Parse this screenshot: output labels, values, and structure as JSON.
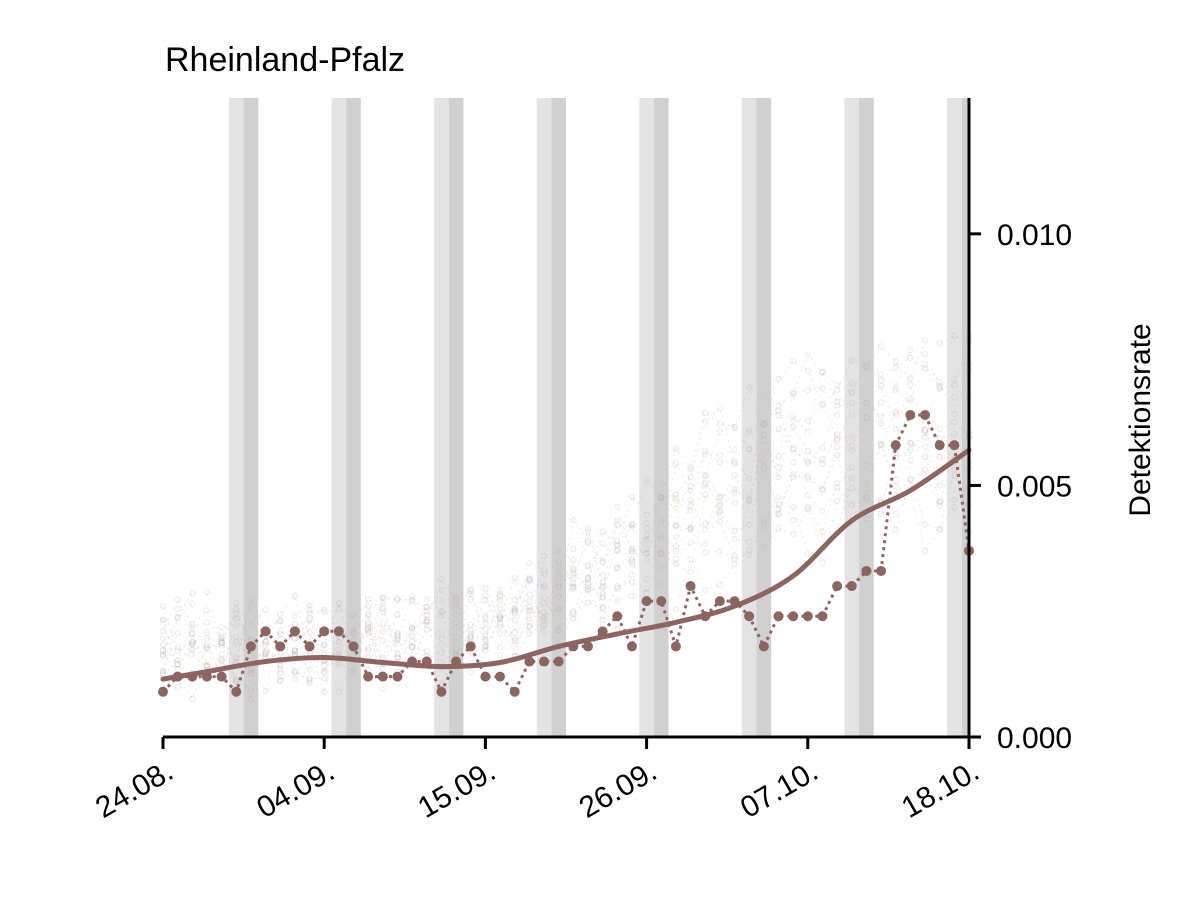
{
  "chart_data": {
    "type": "line",
    "title": "Rheinland-Pfalz",
    "ylabel": "Detektionsrate",
    "y_axis_side": "right",
    "ylim": [
      0,
      0.0127
    ],
    "yticks": [
      0.0,
      0.005,
      0.01
    ],
    "ytick_labels": [
      "0.000",
      "0.005",
      "0.010"
    ],
    "xlim": [
      "2020-08-24",
      "2020-10-18"
    ],
    "xticks": [
      "2020-08-24",
      "2020-09-04",
      "2020-09-15",
      "2020-09-26",
      "2020-10-07",
      "2020-10-18"
    ],
    "xtick_labels": [
      "24.08.",
      "04.09.",
      "15.09.",
      "26.09.",
      "07.10.",
      "18.10."
    ],
    "grid": false,
    "weekend_shading": {
      "saturdays": [
        "2020-08-29",
        "2020-09-05",
        "2020-09-12",
        "2020-09-19",
        "2020-09-26",
        "2020-10-03",
        "2020-10-10",
        "2020-10-17"
      ],
      "saturday_color": "#e3e3e3",
      "sunday_color": "#d0d0d0"
    },
    "series": [
      {
        "kind": "daily",
        "style": "dotted-markers",
        "color": "#8c6560",
        "x": [
          "2020-08-24",
          "2020-08-25",
          "2020-08-26",
          "2020-08-27",
          "2020-08-28",
          "2020-08-29",
          "2020-08-30",
          "2020-08-31",
          "2020-09-01",
          "2020-09-02",
          "2020-09-03",
          "2020-09-04",
          "2020-09-05",
          "2020-09-06",
          "2020-09-07",
          "2020-09-08",
          "2020-09-09",
          "2020-09-10",
          "2020-09-11",
          "2020-09-12",
          "2020-09-13",
          "2020-09-14",
          "2020-09-15",
          "2020-09-16",
          "2020-09-17",
          "2020-09-18",
          "2020-09-19",
          "2020-09-20",
          "2020-09-21",
          "2020-09-22",
          "2020-09-23",
          "2020-09-24",
          "2020-09-25",
          "2020-09-26",
          "2020-09-27",
          "2020-09-28",
          "2020-09-29",
          "2020-09-30",
          "2020-10-01",
          "2020-10-02",
          "2020-10-03",
          "2020-10-04",
          "2020-10-05",
          "2020-10-06",
          "2020-10-07",
          "2020-10-08",
          "2020-10-09",
          "2020-10-10",
          "2020-10-11",
          "2020-10-12",
          "2020-10-13",
          "2020-10-14",
          "2020-10-15",
          "2020-10-16",
          "2020-10-17",
          "2020-10-18"
        ],
        "y": [
          0.0009,
          0.0012,
          0.0012,
          0.0012,
          0.0012,
          0.0009,
          0.0018,
          0.0021,
          0.0018,
          0.0021,
          0.0018,
          0.0021,
          0.0021,
          0.0018,
          0.0012,
          0.0012,
          0.0012,
          0.0015,
          0.0015,
          0.0009,
          0.0015,
          0.0018,
          0.0012,
          0.0012,
          0.0009,
          0.0015,
          0.0015,
          0.0015,
          0.0018,
          0.0018,
          0.0021,
          0.0024,
          0.0018,
          0.0027,
          0.0027,
          0.0018,
          0.003,
          0.0024,
          0.0027,
          0.0027,
          0.0024,
          0.0018,
          0.0024,
          0.0024,
          0.0024,
          0.0024,
          0.003,
          0.003,
          0.0033,
          0.0033,
          0.0058,
          0.0064,
          0.0064,
          0.0058,
          0.0058,
          0.0037
        ]
      },
      {
        "kind": "smoothed",
        "style": "solid",
        "color": "#8c6560",
        "x": [
          "2020-08-24",
          "2020-08-27",
          "2020-08-31",
          "2020-09-04",
          "2020-09-08",
          "2020-09-12",
          "2020-09-16",
          "2020-09-20",
          "2020-09-24",
          "2020-09-28",
          "2020-10-02",
          "2020-10-06",
          "2020-10-10",
          "2020-10-14",
          "2020-10-18"
        ],
        "y": [
          0.00115,
          0.0013,
          0.0015,
          0.00158,
          0.00148,
          0.0014,
          0.00148,
          0.0018,
          0.00205,
          0.00228,
          0.0026,
          0.0032,
          0.0043,
          0.0049,
          0.0057
        ]
      }
    ]
  }
}
